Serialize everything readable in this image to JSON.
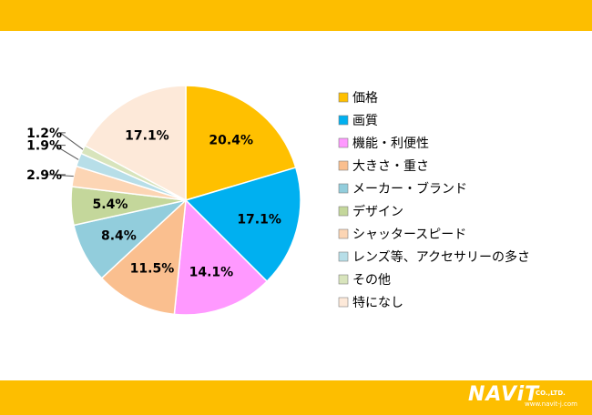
{
  "chart_data": {
    "type": "pie",
    "title": "",
    "categories": [
      "価格",
      "画質",
      "機能・利便性",
      "大きさ・重さ",
      "メーカー・ブランド",
      "デザイン",
      "シャッタースピード",
      "レンズ等、アクセサリーの多さ",
      "その他",
      "特になし"
    ],
    "values": [
      20.4,
      17.1,
      14.1,
      11.5,
      8.4,
      5.4,
      2.9,
      1.9,
      1.2,
      17.1
    ],
    "labels": [
      "20.4%",
      "17.1%",
      "14.1%",
      "11.5%",
      "8.4%",
      "5.4%",
      "2.9%",
      "1.9%",
      "1.2%",
      "17.1%"
    ],
    "colors": [
      "#FFC000",
      "#00B0F0",
      "#FF99FF",
      "#FABF8F",
      "#92CDDC",
      "#C4D79B",
      "#FCD5B4",
      "#B7DEE8",
      "#D8E4BC",
      "#FDE9D9"
    ],
    "legend_position": "right"
  },
  "logo": {
    "main": "NAViT",
    "company": "CO.,LTD.",
    "url": "www.navit-j.com"
  }
}
